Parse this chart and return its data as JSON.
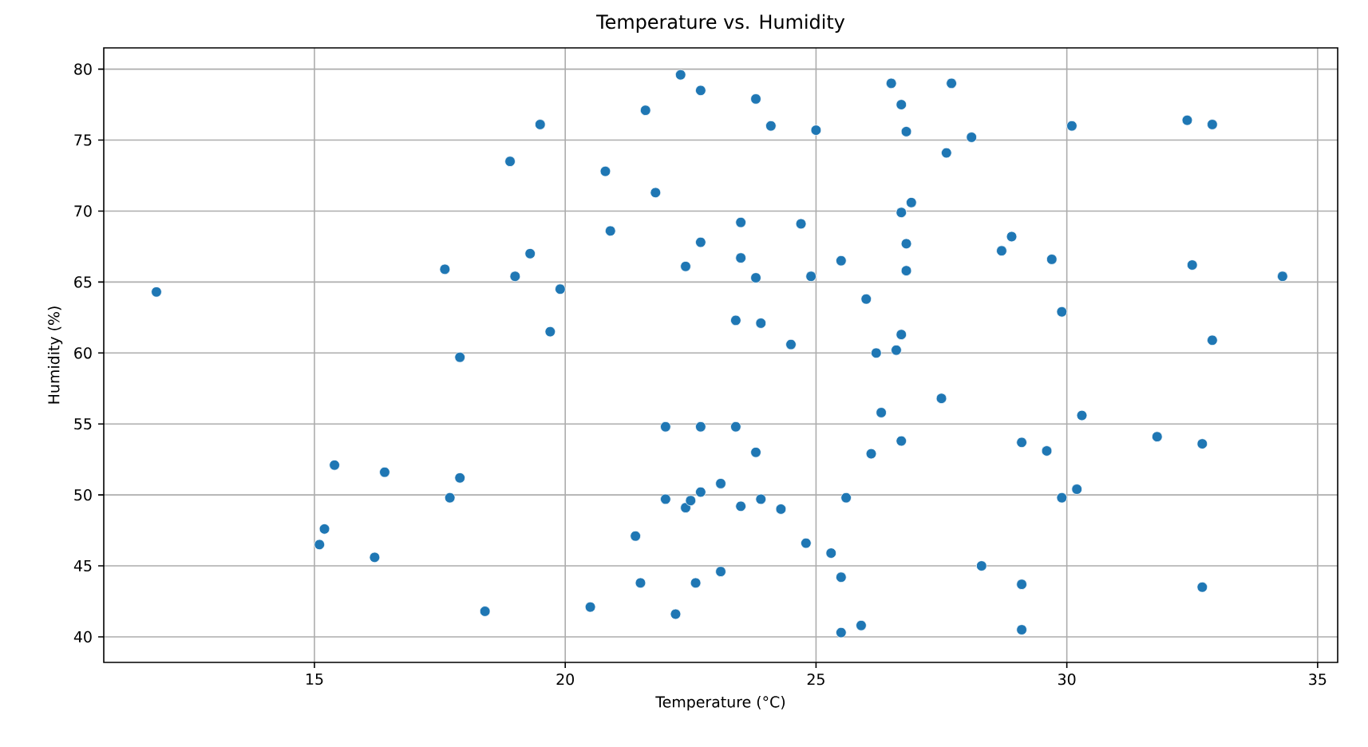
{
  "chart_data": {
    "type": "scatter",
    "title": "Temperature vs. Humidity",
    "xlabel": "Temperature (°C)",
    "ylabel": "Humidity (%)",
    "xlim": [
      10.8,
      35.4
    ],
    "ylim": [
      38.2,
      81.5
    ],
    "xticks": [
      15,
      20,
      25,
      30,
      35
    ],
    "yticks": [
      40,
      45,
      50,
      55,
      60,
      65,
      70,
      75,
      80
    ],
    "grid": true,
    "marker": "circle",
    "color": "#1f77b4",
    "x": [
      11.85,
      15.1,
      15.2,
      15.4,
      16.2,
      16.4,
      17.6,
      17.7,
      17.9,
      17.9,
      18.4,
      18.9,
      19.0,
      19.3,
      19.5,
      19.7,
      19.9,
      20.5,
      20.8,
      20.9,
      21.4,
      21.5,
      21.6,
      21.8,
      22.0,
      22.0,
      22.2,
      22.3,
      22.4,
      22.4,
      22.5,
      22.6,
      22.7,
      22.7,
      22.7,
      22.7,
      23.1,
      23.1,
      23.4,
      23.4,
      23.5,
      23.5,
      23.5,
      23.8,
      23.8,
      23.8,
      23.9,
      23.9,
      24.1,
      24.3,
      24.5,
      24.7,
      24.8,
      24.9,
      25.0,
      25.3,
      25.5,
      25.5,
      25.5,
      25.6,
      25.9,
      26.0,
      26.1,
      26.2,
      26.3,
      26.5,
      26.6,
      26.7,
      26.7,
      26.7,
      26.7,
      26.8,
      26.8,
      26.8,
      26.9,
      27.7,
      27.5,
      27.6,
      28.1,
      28.3,
      28.7,
      28.9,
      29.1,
      29.1,
      29.1,
      29.6,
      29.7,
      29.9,
      29.9,
      30.1,
      30.2,
      30.3,
      31.8,
      32.4,
      32.5,
      32.7,
      32.7,
      32.9,
      32.9,
      34.3
    ],
    "values": [
      64.3,
      46.5,
      47.6,
      52.1,
      45.6,
      51.6,
      65.9,
      49.8,
      59.7,
      51.2,
      41.8,
      73.5,
      65.4,
      67.0,
      76.1,
      61.5,
      64.5,
      42.1,
      72.8,
      68.6,
      47.1,
      43.8,
      77.1,
      71.3,
      54.8,
      49.7,
      41.6,
      79.6,
      66.1,
      49.1,
      49.6,
      43.8,
      54.8,
      67.8,
      78.5,
      50.2,
      50.8,
      44.6,
      54.8,
      62.3,
      49.2,
      66.7,
      69.2,
      77.9,
      65.3,
      53.0,
      49.7,
      62.1,
      76.0,
      49.0,
      60.6,
      69.1,
      46.6,
      65.4,
      75.7,
      45.9,
      40.3,
      44.2,
      66.5,
      49.8,
      40.8,
      63.8,
      52.9,
      60.0,
      55.8,
      79.0,
      60.2,
      53.8,
      61.3,
      69.9,
      77.5,
      67.7,
      65.8,
      75.6,
      70.6,
      79.0,
      56.8,
      74.1,
      75.2,
      45.0,
      67.2,
      68.2,
      53.7,
      43.7,
      40.5,
      53.1,
      66.6,
      62.9,
      49.8,
      76.0,
      50.4,
      55.6,
      54.1,
      76.4,
      66.2,
      53.6,
      43.5,
      76.1,
      60.9,
      65.4
    ]
  }
}
